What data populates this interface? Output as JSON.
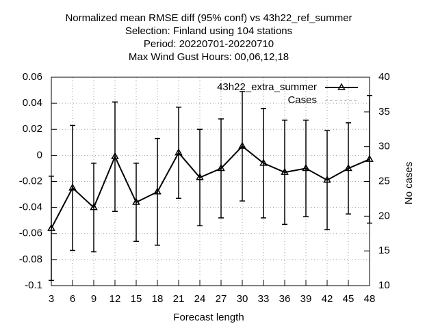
{
  "chart_data": {
    "type": "line",
    "title": [
      "Normalized mean RMSE diff (95% conf) vs 43h22_ref_summer",
      "Selection: Finland using   104 stations",
      "Period: 20220701-20220710",
      "Max Wind Gust   Hours:  00,06,12,18"
    ],
    "xlabel": "Forecast length",
    "y2label": "No cases",
    "x": [
      3,
      6,
      9,
      12,
      15,
      18,
      21,
      24,
      27,
      30,
      33,
      36,
      39,
      42,
      45,
      48
    ],
    "series": [
      {
        "name": "43h22_extra_summer",
        "color": "#000000",
        "values": [
          -0.056,
          -0.025,
          -0.04,
          -0.001,
          -0.036,
          -0.028,
          0.002,
          -0.017,
          -0.01,
          0.007,
          -0.006,
          -0.013,
          -0.01,
          -0.019,
          -0.01,
          -0.003
        ],
        "errors": [
          0.04,
          0.048,
          0.034,
          0.042,
          0.03,
          0.041,
          0.035,
          0.037,
          0.038,
          0.042,
          0.042,
          0.04,
          0.037,
          0.038,
          0.035,
          0.049
        ]
      },
      {
        "name": "Cases",
        "color": "#a0a0a0",
        "axis": "y2",
        "values": [
          null,
          null,
          null,
          null,
          null,
          null,
          null,
          null,
          null,
          null,
          null,
          null,
          null,
          null,
          null,
          null
        ]
      }
    ],
    "xlim": [
      3,
      48
    ],
    "xticks": [
      3,
      6,
      9,
      12,
      15,
      18,
      21,
      24,
      27,
      30,
      33,
      36,
      39,
      42,
      45,
      48
    ],
    "ylim": [
      -0.1,
      0.06
    ],
    "yticks": [
      -0.1,
      -0.08,
      -0.06,
      -0.04,
      -0.02,
      0,
      0.02,
      0.04,
      0.06
    ],
    "y2lim": [
      10,
      40
    ],
    "y2ticks": [
      10,
      15,
      20,
      25,
      30,
      35,
      40
    ],
    "grid": true,
    "legend": "top-right"
  }
}
